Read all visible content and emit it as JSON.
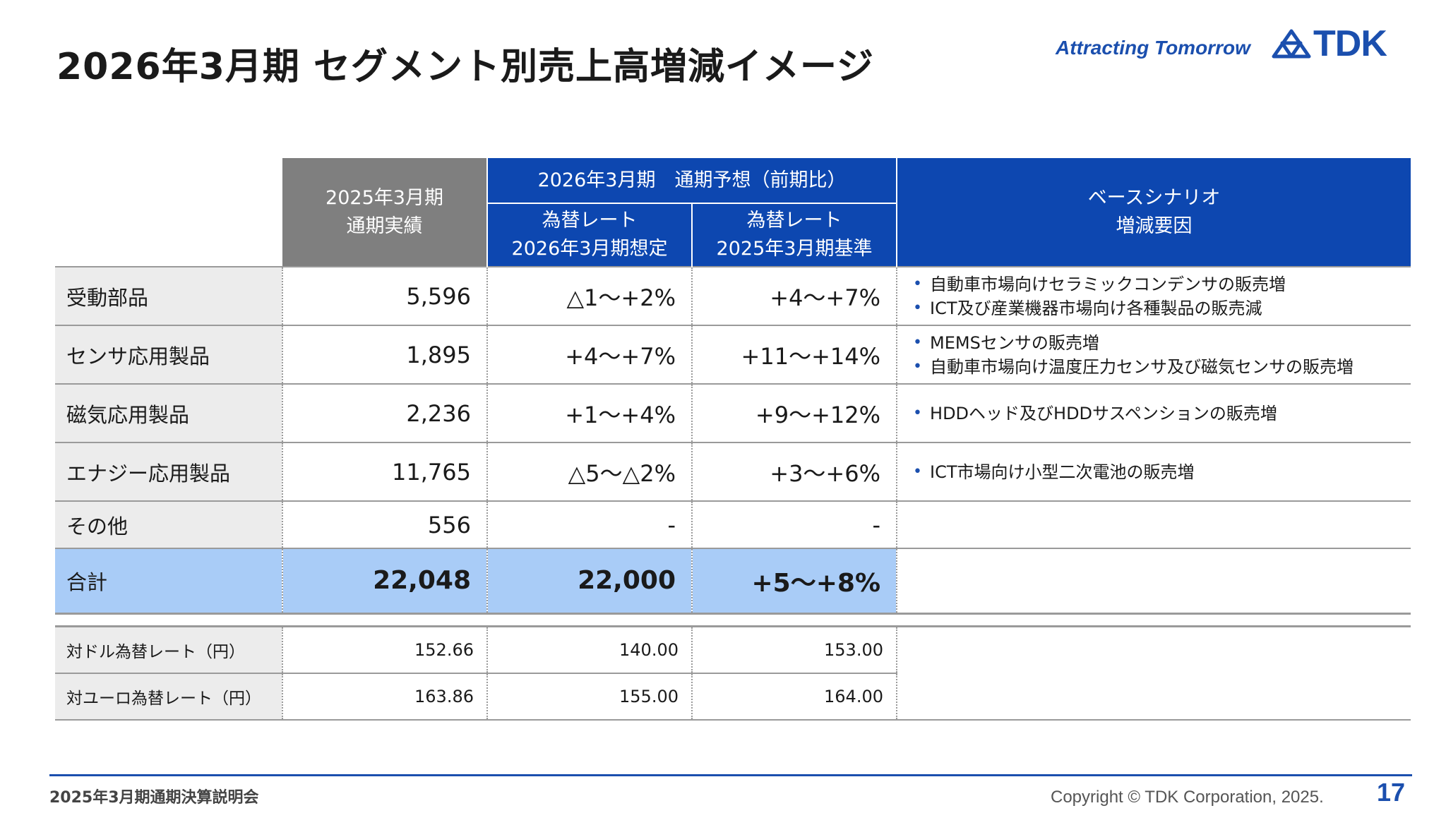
{
  "header": {
    "title": "2026年3月期 セグメント別売上高増減イメージ",
    "tagline": "Attracting Tomorrow",
    "logo_text": "TDK"
  },
  "table": {
    "col_fy25": "2025年3月期\n通期実績",
    "col_forecast_group": "2026年3月期　通期予想（前期比）",
    "col_rate_assumed": "為替レート\n2026年3月期想定",
    "col_rate_fy25": "為替レート\n2025年3月期基準",
    "col_reasons": "ベースシナリオ\n増減要因",
    "rows": [
      {
        "segment": "受動部品",
        "fy25": "5,596",
        "assumed": "△1〜+2%",
        "base": "+4〜+7%",
        "reasons": [
          "自動車市場向けセラミックコンデンサの販売増",
          "ICT及び産業機器市場向け各種製品の販売減"
        ]
      },
      {
        "segment": "センサ応用製品",
        "fy25": "1,895",
        "assumed": "+4〜+7%",
        "base": "+11〜+14%",
        "reasons": [
          "MEMSセンサの販売増",
          "自動車市場向け温度圧力センサ及び磁気センサの販売増"
        ]
      },
      {
        "segment": "磁気応用製品",
        "fy25": "2,236",
        "assumed": "+1〜+4%",
        "base": "+9〜+12%",
        "reasons": [
          "HDDヘッド及びHDDサスペンションの販売増"
        ]
      },
      {
        "segment": "エナジー応用製品",
        "fy25": "11,765",
        "assumed": "△5〜△2%",
        "base": "+3〜+6%",
        "reasons": [
          "ICT市場向け小型二次電池の販売増"
        ]
      },
      {
        "segment": "その他",
        "fy25": "556",
        "assumed": "-",
        "base": "-",
        "reasons": []
      }
    ],
    "total": {
      "segment": "合計",
      "fy25": "22,048",
      "assumed": "22,000",
      "base": "+5〜+8%"
    }
  },
  "fx": {
    "rows": [
      {
        "label": "対ドル為替レート（円）",
        "fy25": "152.66",
        "assumed": "140.00",
        "base": "153.00"
      },
      {
        "label": "対ユーロ為替レート（円）",
        "fy25": "163.86",
        "assumed": "155.00",
        "base": "164.00"
      }
    ]
  },
  "footer": {
    "event": "2025年3月期通期決算説明会",
    "copyright": "Copyright © TDK Corporation, 2025.",
    "page": "17"
  },
  "colors": {
    "brand_blue": "#0d47b0",
    "header_gray": "#7f7f7f",
    "total_highlight": "#a9ccf7",
    "label_bg": "#ececec"
  }
}
